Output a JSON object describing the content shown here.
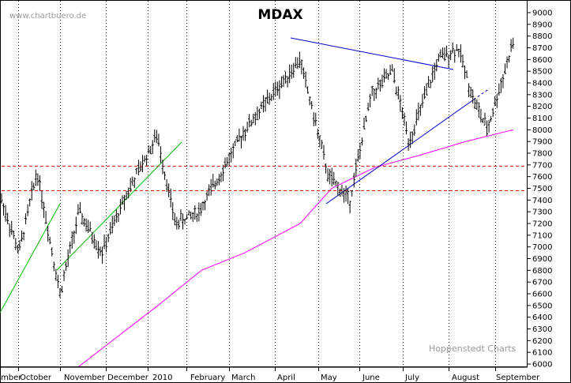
{
  "watermark": "www.chartbuero.de",
  "publisher": "Hoppenstedt Charts",
  "colors": {
    "bars": "#000000",
    "moving_average": "#ff00ff",
    "uptrend_green": "#00c000",
    "trendline_blue": "#0000cc",
    "horizontal_red": "#ff0000",
    "grid": "#000000"
  },
  "chart_data": {
    "type": "ohlc",
    "title": "MDAX",
    "y_axis": {
      "min": 6000,
      "max": 9000,
      "step": 100,
      "position": "right",
      "ticks": [
        6000,
        6100,
        6200,
        6300,
        6400,
        6500,
        6600,
        6700,
        6800,
        6900,
        7000,
        7100,
        7200,
        7300,
        7400,
        7500,
        7600,
        7700,
        7800,
        7900,
        8000,
        8100,
        8200,
        8300,
        8400,
        8500,
        8600,
        8700,
        8800,
        8900,
        9000
      ]
    },
    "x_axis": {
      "labels": [
        "mber",
        "October",
        "November",
        "December",
        "2010",
        "February",
        "March",
        "April",
        "May",
        "June",
        "July",
        "August",
        "September"
      ]
    },
    "grid": "vertical dotted at month boundaries",
    "horizontal_levels": [
      7690,
      7480
    ],
    "key_points": [
      {
        "period": "September (start)",
        "value": 7400
      },
      {
        "period": "mid September",
        "value": 6950
      },
      {
        "period": "early October",
        "value": 7650
      },
      {
        "period": "late October",
        "value": 6600
      },
      {
        "period": "early November",
        "value": 7300
      },
      {
        "period": "late November",
        "value": 6950
      },
      {
        "period": "December",
        "value": 7450
      },
      {
        "period": "early January",
        "value": 7950
      },
      {
        "period": "late January",
        "value": 7200
      },
      {
        "period": "mid February",
        "value": 7300
      },
      {
        "period": "March",
        "value": 8000
      },
      {
        "period": "April",
        "value": 8600
      },
      {
        "period": "early May",
        "value": 7600
      },
      {
        "period": "mid May",
        "value": 7400
      },
      {
        "period": "early June",
        "value": 8300
      },
      {
        "period": "late June",
        "value": 8500
      },
      {
        "period": "early July",
        "value": 7900
      },
      {
        "period": "late July",
        "value": 8600
      },
      {
        "period": "early August",
        "value": 8700
      },
      {
        "period": "mid August",
        "value": 8250
      },
      {
        "period": "late August",
        "value": 8000
      },
      {
        "period": "September (end)",
        "value": 8750
      }
    ],
    "moving_average": {
      "name": "200-day moving average",
      "points": [
        {
          "period": "November (end)",
          "value": 5980
        },
        {
          "period": "January",
          "value": 6500
        },
        {
          "period": "February",
          "value": 6800
        },
        {
          "period": "March",
          "value": 6950
        },
        {
          "period": "April",
          "value": 7200
        },
        {
          "period": "May",
          "value": 7500
        },
        {
          "period": "June",
          "value": 7680
        },
        {
          "period": "July",
          "value": 7780
        },
        {
          "period": "August",
          "value": 7900
        },
        {
          "period": "September",
          "value": 8000
        }
      ]
    }
  }
}
